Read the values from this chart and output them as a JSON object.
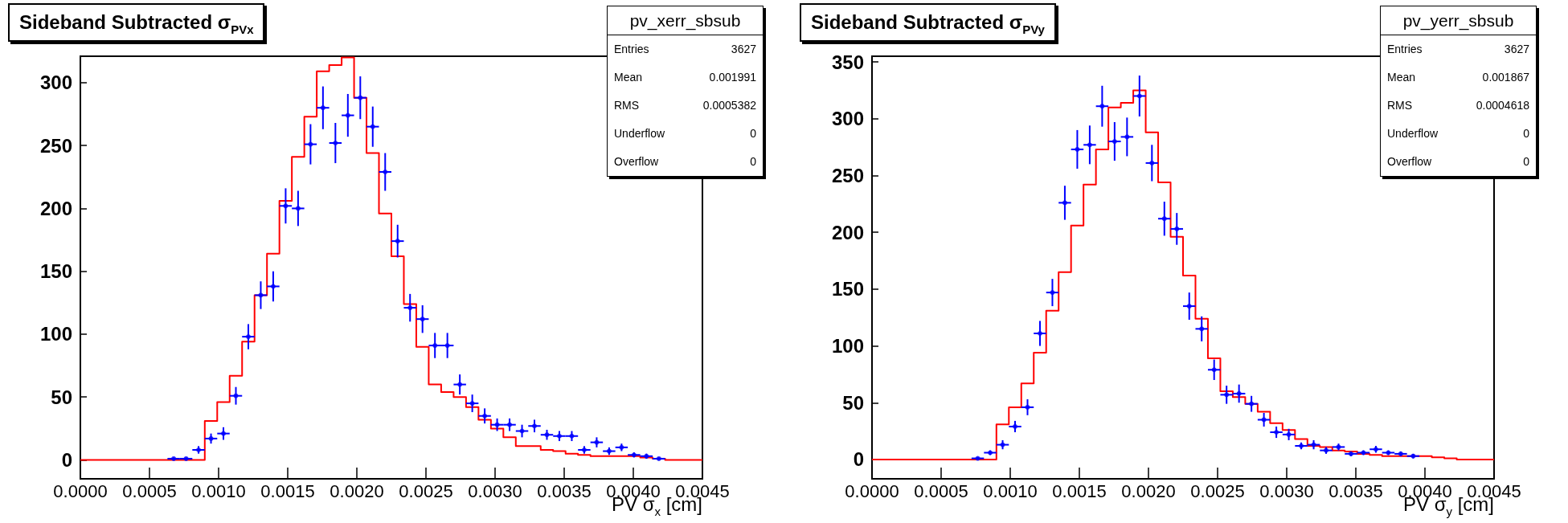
{
  "chart_data": [
    {
      "type": "histogram",
      "title": "Sideband Subtracted σ$_{PVx}$",
      "xlabel": "PV σ$_{x}$ [cm]",
      "annotations": [
        "pv_xerr_sbsub",
        "Entries",
        "3627",
        "Mean",
        "0.001991",
        "RMS",
        "0.0005382",
        "Underflow",
        "0",
        "Overflow",
        "0"
      ],
      "xlim": [
        0,
        0.0045
      ],
      "ylim": [
        -15,
        321
      ],
      "xticks": [
        {
          "value": 0,
          "label": "0.0000"
        },
        {
          "value": 0.0005,
          "label": "0.0005"
        },
        {
          "value": 0.001,
          "label": "0.0010"
        },
        {
          "value": 0.0015,
          "label": "0.0015"
        },
        {
          "value": 0.002,
          "label": "0.0020"
        },
        {
          "value": 0.0025,
          "label": "0.0025"
        },
        {
          "value": 0.003,
          "label": "0.0030"
        },
        {
          "value": 0.0035,
          "label": "0.0035"
        },
        {
          "value": 0.004,
          "label": "0.0040"
        },
        {
          "value": 0.0045,
          "label": "0.0045"
        }
      ],
      "yticks": [
        0,
        50,
        100,
        150,
        200,
        250,
        300
      ],
      "bins": [
        0,
        9e-05,
        0.00018,
        0.00027,
        0.00036,
        0.00045,
        0.00054,
        0.00063,
        0.00072,
        0.00081,
        0.0009,
        0.00099,
        0.00108,
        0.00117,
        0.00126,
        0.00135,
        0.00144,
        0.00153,
        0.00162,
        0.00171,
        0.0018,
        0.00189,
        0.00198,
        0.00207,
        0.00216,
        0.00225,
        0.00234,
        0.00243,
        0.00252,
        0.00261,
        0.0027,
        0.00279,
        0.00288,
        0.00297,
        0.00306,
        0.00315,
        0.00324,
        0.00333,
        0.00342,
        0.00351,
        0.0036,
        0.00369,
        0.00378,
        0.00387,
        0.00396,
        0.00405,
        0.00414,
        0.00423,
        0.00432,
        0.00441,
        0.0045
      ],
      "series": [
        {
          "color": "#ff0000",
          "values": [
            0,
            0,
            0,
            0,
            0,
            0,
            0,
            0,
            0,
            0,
            31,
            46,
            67,
            94,
            131,
            164,
            206,
            241,
            273,
            309,
            314,
            320,
            288,
            244,
            196,
            162,
            124,
            90,
            60,
            54,
            50,
            42,
            32,
            25,
            18,
            11,
            11,
            8,
            7,
            5,
            4,
            3,
            3,
            3,
            3,
            2,
            1,
            0,
            0,
            0
          ]
        },
        {
          "type": "scatter",
          "color": "#0000ff",
          "x": [
            0.000675,
            0.000765,
            0.000855,
            0.000945,
            0.001035,
            0.001125,
            0.001215,
            0.001305,
            0.001395,
            0.001485,
            0.001575,
            0.001665,
            0.001755,
            0.001845,
            0.001935,
            0.002025,
            0.002115,
            0.002205,
            0.002295,
            0.002385,
            0.002475,
            0.002565,
            0.002655,
            0.002745,
            0.002835,
            0.002925,
            0.003015,
            0.003105,
            0.003195,
            0.003285,
            0.003375,
            0.003465,
            0.003555,
            0.003645,
            0.003735,
            0.003825,
            0.003915,
            0.004005,
            0.004095,
            0.004185
          ],
          "values": [
            1,
            1,
            8,
            17,
            21,
            51,
            98,
            131,
            138,
            202,
            200,
            251,
            280,
            252,
            274,
            288,
            265,
            229,
            174,
            121,
            112,
            91,
            91,
            60,
            45,
            35,
            28,
            28,
            23,
            27,
            20,
            19,
            19,
            8,
            14,
            7,
            10,
            4,
            3,
            1
          ],
          "errors": [
            1,
            1,
            3,
            4,
            5,
            7,
            10,
            11,
            12,
            14,
            14,
            16,
            17,
            16,
            17,
            17,
            16,
            15,
            13,
            11,
            11,
            10,
            10,
            8,
            7,
            6,
            5,
            5,
            5,
            5,
            4,
            4,
            4,
            3,
            4,
            3,
            3,
            2,
            2,
            1
          ],
          "xerrors": [
            4.5e-05,
            4.5e-05,
            4.5e-05,
            4.5e-05,
            4.5e-05,
            4.5e-05,
            4.5e-05,
            4.5e-05,
            4.5e-05,
            4.5e-05,
            4.5e-05,
            4.5e-05,
            4.5e-05,
            4.5e-05,
            4.5e-05,
            4.5e-05,
            4.5e-05,
            4.5e-05,
            4.5e-05,
            4.5e-05,
            4.5e-05,
            4.5e-05,
            4.5e-05,
            4.5e-05,
            4.5e-05,
            4.5e-05,
            4.5e-05,
            4.5e-05,
            4.5e-05,
            4.5e-05,
            4.5e-05,
            4.5e-05,
            4.5e-05,
            4.5e-05,
            4.5e-05,
            4.5e-05,
            4.5e-05,
            4.5e-05,
            4.5e-05,
            4.5e-05
          ]
        }
      ]
    },
    {
      "type": "histogram",
      "title": "Sideband Subtracted σ$_{PVy}$",
      "xlabel": "PV σ$_{y}$ [cm]",
      "annotations": [
        "pv_yerr_sbsub",
        "Entries",
        "3627",
        "Mean",
        "0.001867",
        "RMS",
        "0.0004618",
        "Underflow",
        "0",
        "Overflow",
        "0"
      ],
      "xlim": [
        0,
        0.0045
      ],
      "ylim": [
        -17,
        355
      ],
      "xticks": [
        {
          "value": 0,
          "label": "0.0000"
        },
        {
          "value": 0.0005,
          "label": "0.0005"
        },
        {
          "value": 0.001,
          "label": "0.0010"
        },
        {
          "value": 0.0015,
          "label": "0.0015"
        },
        {
          "value": 0.002,
          "label": "0.0020"
        },
        {
          "value": 0.0025,
          "label": "0.0025"
        },
        {
          "value": 0.003,
          "label": "0.0030"
        },
        {
          "value": 0.0035,
          "label": "0.0035"
        },
        {
          "value": 0.004,
          "label": "0.0040"
        },
        {
          "value": 0.0045,
          "label": "0.0045"
        }
      ],
      "yticks": [
        0,
        50,
        100,
        150,
        200,
        250,
        300,
        350
      ],
      "bins": [
        0,
        9e-05,
        0.00018,
        0.00027,
        0.00036,
        0.00045,
        0.00054,
        0.00063,
        0.00072,
        0.00081,
        0.0009,
        0.00099,
        0.00108,
        0.00117,
        0.00126,
        0.00135,
        0.00144,
        0.00153,
        0.00162,
        0.00171,
        0.0018,
        0.00189,
        0.00198,
        0.00207,
        0.00216,
        0.00225,
        0.00234,
        0.00243,
        0.00252,
        0.00261,
        0.0027,
        0.00279,
        0.00288,
        0.00297,
        0.00306,
        0.00315,
        0.00324,
        0.00333,
        0.00342,
        0.00351,
        0.0036,
        0.00369,
        0.00378,
        0.00387,
        0.00396,
        0.00405,
        0.00414,
        0.00423,
        0.00432,
        0.00441,
        0.0045
      ],
      "series": [
        {
          "color": "#ff0000",
          "values": [
            0,
            0,
            0,
            0,
            0,
            0,
            0,
            0,
            0,
            0,
            31,
            46,
            67,
            94,
            131,
            165,
            206,
            242,
            273,
            310,
            314,
            325,
            288,
            244,
            196,
            162,
            124,
            89,
            60,
            55,
            49,
            42,
            32,
            26,
            18,
            12,
            11,
            8,
            7,
            5,
            4,
            3,
            3,
            3,
            3,
            2,
            1,
            0,
            0,
            0
          ]
        },
        {
          "type": "scatter",
          "color": "#0000ff",
          "x": [
            0.000765,
            0.000855,
            0.000945,
            0.001035,
            0.001125,
            0.001215,
            0.001305,
            0.001395,
            0.001485,
            0.001575,
            0.001665,
            0.001755,
            0.001845,
            0.001935,
            0.002025,
            0.002115,
            0.002205,
            0.002295,
            0.002385,
            0.002475,
            0.002565,
            0.002655,
            0.002745,
            0.002835,
            0.002925,
            0.003015,
            0.003105,
            0.003195,
            0.003285,
            0.003375,
            0.003465,
            0.003555,
            0.003645,
            0.003735,
            0.003825,
            0.003915
          ],
          "values": [
            1,
            6,
            13,
            29,
            46,
            111,
            147,
            226,
            273,
            277,
            311,
            280,
            284,
            320,
            261,
            212,
            203,
            135,
            115,
            79,
            57,
            58,
            49,
            35,
            24,
            22,
            12,
            13,
            8,
            11,
            5,
            6,
            9,
            6,
            5,
            3
          ],
          "errors": [
            1,
            2,
            4,
            5,
            7,
            11,
            12,
            15,
            17,
            17,
            18,
            17,
            17,
            18,
            16,
            15,
            14,
            12,
            11,
            9,
            8,
            8,
            7,
            6,
            5,
            5,
            3,
            4,
            3,
            3,
            2,
            2,
            3,
            2,
            2,
            2
          ],
          "xerrors": [
            4.5e-05,
            4.5e-05,
            4.5e-05,
            4.5e-05,
            4.5e-05,
            4.5e-05,
            4.5e-05,
            4.5e-05,
            4.5e-05,
            4.5e-05,
            4.5e-05,
            4.5e-05,
            4.5e-05,
            4.5e-05,
            4.5e-05,
            4.5e-05,
            4.5e-05,
            4.5e-05,
            4.5e-05,
            4.5e-05,
            4.5e-05,
            4.5e-05,
            4.5e-05,
            4.5e-05,
            4.5e-05,
            4.5e-05,
            4.5e-05,
            4.5e-05,
            4.5e-05,
            4.5e-05,
            4.5e-05,
            4.5e-05,
            4.5e-05,
            4.5e-05,
            4.5e-05,
            4.5e-05
          ]
        }
      ]
    }
  ]
}
